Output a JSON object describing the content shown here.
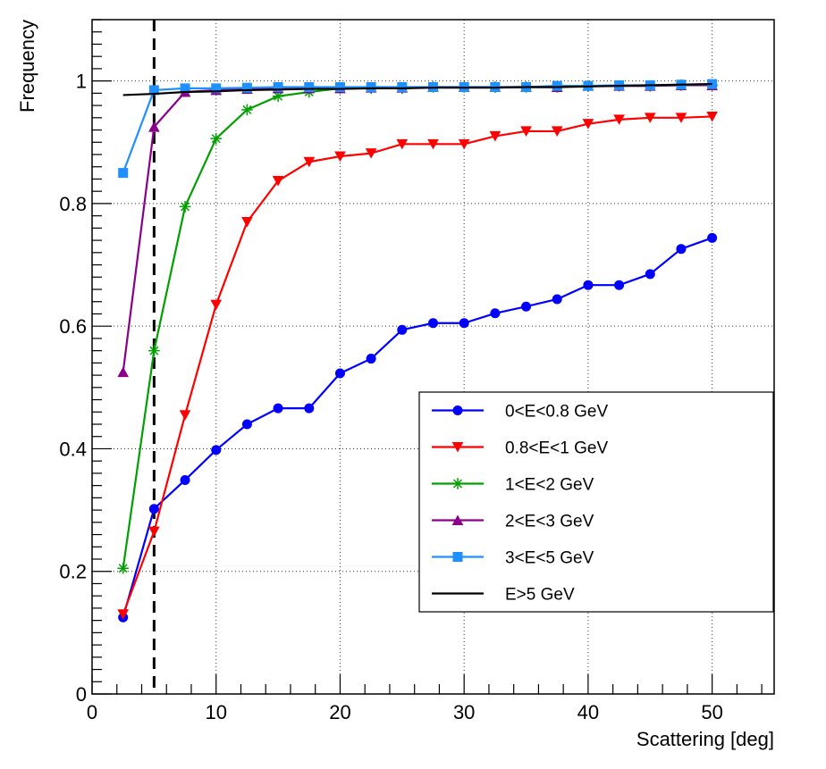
{
  "chart_data": {
    "type": "line",
    "title": "",
    "xlabel": "Scattering [deg]",
    "ylabel": "Frequency",
    "xlim": [
      0,
      55
    ],
    "ylim": [
      0,
      1.1
    ],
    "xticks": [
      0,
      10,
      20,
      30,
      40,
      50
    ],
    "yticks": [
      0,
      0.2,
      0.4,
      0.6,
      0.8,
      1
    ],
    "grid": true,
    "legend_position": "right",
    "cut_line": {
      "x": 5,
      "style": "dashed",
      "color": "#000000"
    },
    "series": [
      {
        "name": "0<E<0.8 GeV",
        "color": "#0000ff",
        "marker": "circle",
        "x": [
          2.5,
          5,
          7.5,
          10,
          12.5,
          15,
          17.5,
          20,
          22.5,
          25,
          27.5,
          30,
          32.5,
          35,
          37.5,
          40,
          42.5,
          45,
          47.5,
          50
        ],
        "y": [
          0.125,
          0.302,
          0.349,
          0.398,
          0.44,
          0.466,
          0.466,
          0.523,
          0.547,
          0.594,
          0.605,
          0.605,
          0.621,
          0.632,
          0.644,
          0.667,
          0.667,
          0.685,
          0.726,
          0.744
        ]
      },
      {
        "name": "0.8<E<1 GeV",
        "color": "#ff0000",
        "marker": "triangle-down",
        "x": [
          2.5,
          5,
          7.5,
          10,
          12.5,
          15,
          17.5,
          20,
          22.5,
          25,
          27.5,
          30,
          32.5,
          35,
          37.5,
          40,
          42.5,
          45,
          47.5,
          50
        ],
        "y": [
          0.13,
          0.265,
          0.455,
          0.635,
          0.77,
          0.837,
          0.868,
          0.877,
          0.882,
          0.897,
          0.897,
          0.897,
          0.91,
          0.918,
          0.918,
          0.93,
          0.937,
          0.94,
          0.94,
          0.942
        ]
      },
      {
        "name": "1<E<2 GeV",
        "color": "#00a000",
        "marker": "star",
        "x": [
          2.5,
          5,
          7.5,
          10,
          12.5,
          15,
          17.5,
          20,
          22.5,
          25,
          27.5,
          30,
          32.5,
          35,
          37.5,
          40,
          42.5,
          45,
          47.5,
          50
        ],
        "y": [
          0.205,
          0.56,
          0.795,
          0.906,
          0.953,
          0.975,
          0.982,
          0.988,
          0.988,
          0.988,
          0.99,
          0.99,
          0.99,
          0.99,
          0.99,
          0.992,
          0.992,
          0.992,
          0.993,
          0.993
        ]
      },
      {
        "name": "2<E<3 GeV",
        "color": "#8b008b",
        "marker": "triangle-up",
        "x": [
          2.5,
          5,
          7.5,
          10,
          12.5,
          15,
          17.5,
          20,
          22.5,
          25,
          27.5,
          30,
          32.5,
          35,
          37.5,
          40,
          42.5,
          45,
          47.5,
          50
        ],
        "y": [
          0.525,
          0.925,
          0.982,
          0.985,
          0.987,
          0.988,
          0.988,
          0.988,
          0.989,
          0.989,
          0.99,
          0.99,
          0.99,
          0.99,
          0.99,
          0.992,
          0.992,
          0.992,
          0.993,
          0.993
        ]
      },
      {
        "name": "3<E<5 GeV",
        "color": "#1e90ff",
        "marker": "square",
        "x": [
          2.5,
          5,
          7.5,
          10,
          12.5,
          15,
          17.5,
          20,
          22.5,
          25,
          27.5,
          30,
          32.5,
          35,
          37.5,
          40,
          42.5,
          45,
          47.5,
          50
        ],
        "y": [
          0.85,
          0.985,
          0.988,
          0.988,
          0.989,
          0.99,
          0.99,
          0.99,
          0.99,
          0.99,
          0.99,
          0.99,
          0.99,
          0.99,
          0.992,
          0.992,
          0.993,
          0.993,
          0.994,
          0.995
        ]
      },
      {
        "name": "E>5 GeV",
        "color": "#000000",
        "marker": "none",
        "x": [
          2.5,
          5,
          7.5,
          10,
          12.5,
          15,
          17.5,
          20,
          22.5,
          25,
          27.5,
          30,
          32.5,
          35,
          37.5,
          40,
          42.5,
          45,
          47.5,
          50
        ],
        "y": [
          0.977,
          0.979,
          0.982,
          0.983,
          0.985,
          0.986,
          0.987,
          0.987,
          0.988,
          0.988,
          0.989,
          0.989,
          0.989,
          0.99,
          0.99,
          0.991,
          0.992,
          0.993,
          0.994,
          0.995
        ]
      }
    ]
  }
}
